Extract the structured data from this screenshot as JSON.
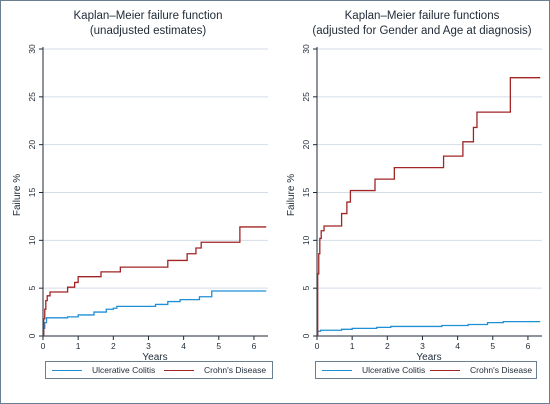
{
  "colors": {
    "ulcerative_colitis": "#1f8fd6",
    "crohns_disease": "#a12525"
  },
  "legend": {
    "items": [
      "Ulcerative Colitis",
      "Crohn's Disease"
    ]
  },
  "chart_data": [
    {
      "type": "line",
      "title": "Kaplan–Meier failure function",
      "subtitle": "(unadjusted estimates)",
      "xlabel": "Years",
      "ylabel": "Failure %",
      "xlim": [
        0,
        6.4
      ],
      "ylim": [
        0,
        30
      ],
      "xticks": [
        0,
        1,
        2,
        3,
        4,
        5,
        6
      ],
      "yticks": [
        0,
        5,
        10,
        15,
        20,
        25,
        30
      ],
      "grid": true,
      "step": true,
      "legend": "bottom",
      "series": [
        {
          "name": "Ulcerative Colitis",
          "x": [
            0,
            0.02,
            0.05,
            0.1,
            0.7,
            1.0,
            1.45,
            1.8,
            2.0,
            2.1,
            3.2,
            3.55,
            3.9,
            4.45,
            4.8,
            6.35
          ],
          "y": [
            0,
            0.8,
            1.4,
            1.9,
            2.0,
            2.2,
            2.5,
            2.8,
            2.9,
            3.1,
            3.3,
            3.6,
            3.8,
            4.1,
            4.7,
            4.7
          ]
        },
        {
          "name": "Crohn's Disease",
          "x": [
            0,
            0.02,
            0.05,
            0.08,
            0.12,
            0.2,
            0.7,
            0.9,
            1.0,
            1.65,
            2.2,
            3.55,
            4.1,
            4.35,
            4.5,
            4.6,
            5.6,
            6.35
          ],
          "y": [
            0,
            1.8,
            2.8,
            3.7,
            4.2,
            4.6,
            5.1,
            5.6,
            6.2,
            6.7,
            7.2,
            7.9,
            8.6,
            9.2,
            9.8,
            9.8,
            11.4,
            11.4
          ]
        }
      ]
    },
    {
      "type": "line",
      "title": "Kaplan–Meier failure functions",
      "subtitle": "(adjusted for Gender and Age at diagnosis)",
      "xlabel": "Years",
      "ylabel": "Failure %",
      "xlim": [
        0,
        6.4
      ],
      "ylim": [
        0,
        30
      ],
      "xticks": [
        0,
        1,
        2,
        3,
        4,
        5,
        6
      ],
      "yticks": [
        0,
        5,
        10,
        15,
        20,
        25,
        30
      ],
      "grid": true,
      "step": true,
      "legend": "bottom",
      "series": [
        {
          "name": "Ulcerative Colitis",
          "x": [
            0,
            0.02,
            0.1,
            0.7,
            1.0,
            1.7,
            2.1,
            3.55,
            4.3,
            4.85,
            5.3,
            6.35
          ],
          "y": [
            0,
            0.5,
            0.6,
            0.7,
            0.8,
            0.9,
            1.0,
            1.1,
            1.2,
            1.4,
            1.5,
            1.5
          ]
        },
        {
          "name": "Crohn's Disease",
          "x": [
            0,
            0.02,
            0.05,
            0.08,
            0.12,
            0.2,
            0.7,
            0.85,
            0.95,
            1.65,
            2.2,
            3.6,
            4.15,
            4.45,
            4.55,
            5.5,
            6.35
          ],
          "y": [
            0,
            6.5,
            8.6,
            10.2,
            11.0,
            11.5,
            12.8,
            14.0,
            15.2,
            16.4,
            17.6,
            18.8,
            20.3,
            21.8,
            23.4,
            27.0,
            27.0
          ]
        }
      ]
    }
  ]
}
